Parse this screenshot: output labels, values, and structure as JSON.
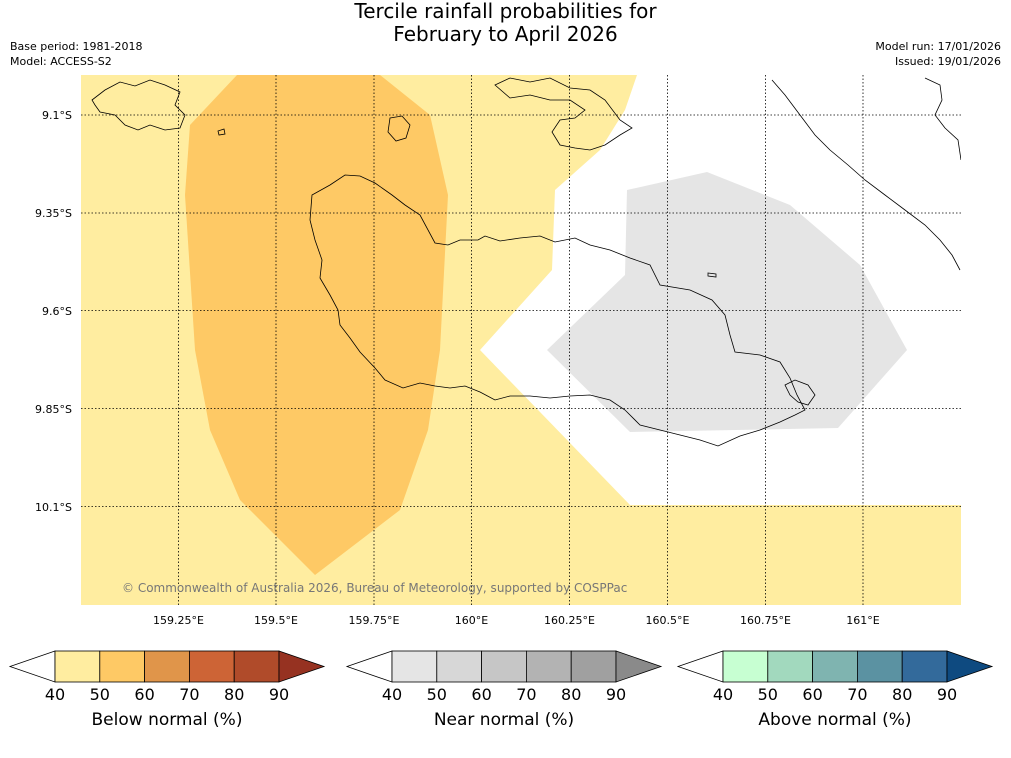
{
  "title": {
    "line1": "Tercile rainfall probabilities for",
    "line2": "February to April 2026"
  },
  "meta_left": {
    "base_period": "Base period: 1981-2018",
    "model": "Model: ACCESS-S2"
  },
  "meta_right": {
    "model_run": "Model run: 17/01/2026",
    "issued": "Issued: 19/01/2026"
  },
  "map": {
    "lat_ticks": [
      "9.1°S",
      "9.35°S",
      "9.6°S",
      "9.85°S",
      "10.1°S"
    ],
    "lon_ticks": [
      "159.25°E",
      "159.5°E",
      "159.75°E",
      "160°E",
      "160.25°E",
      "160.5°E",
      "160.75°E",
      "161°E"
    ],
    "copyright": "© Commonwealth of Australia 2026, Bureau of Meteorology, supported by COSPPac",
    "colors": {
      "below_40_50": "#ffeda0",
      "below_50_60": "#fec965",
      "near_40_50": "#e5e5e5",
      "coast": "#000000"
    }
  },
  "colorbars": [
    {
      "name": "below",
      "label": "Below normal (%)",
      "ticks": [
        "40",
        "50",
        "60",
        "70",
        "80",
        "90"
      ],
      "colors": [
        "#ffeda0",
        "#fec965",
        "#e0954a",
        "#cd6436",
        "#b04b2a",
        "#963221"
      ]
    },
    {
      "name": "near",
      "label": "Near normal (%)",
      "ticks": [
        "40",
        "50",
        "60",
        "70",
        "80",
        "90"
      ],
      "colors": [
        "#e5e5e5",
        "#d7d7d7",
        "#c6c6c6",
        "#b3b3b3",
        "#a0a0a0",
        "#8a8a8a"
      ]
    },
    {
      "name": "above",
      "label": "Above normal (%)",
      "ticks": [
        "40",
        "50",
        "60",
        "70",
        "80",
        "90"
      ],
      "colors": [
        "#c7ffd2",
        "#a2d9be",
        "#7fb4b0",
        "#5b92a2",
        "#336a9b",
        "#0e4a80"
      ]
    }
  ]
}
